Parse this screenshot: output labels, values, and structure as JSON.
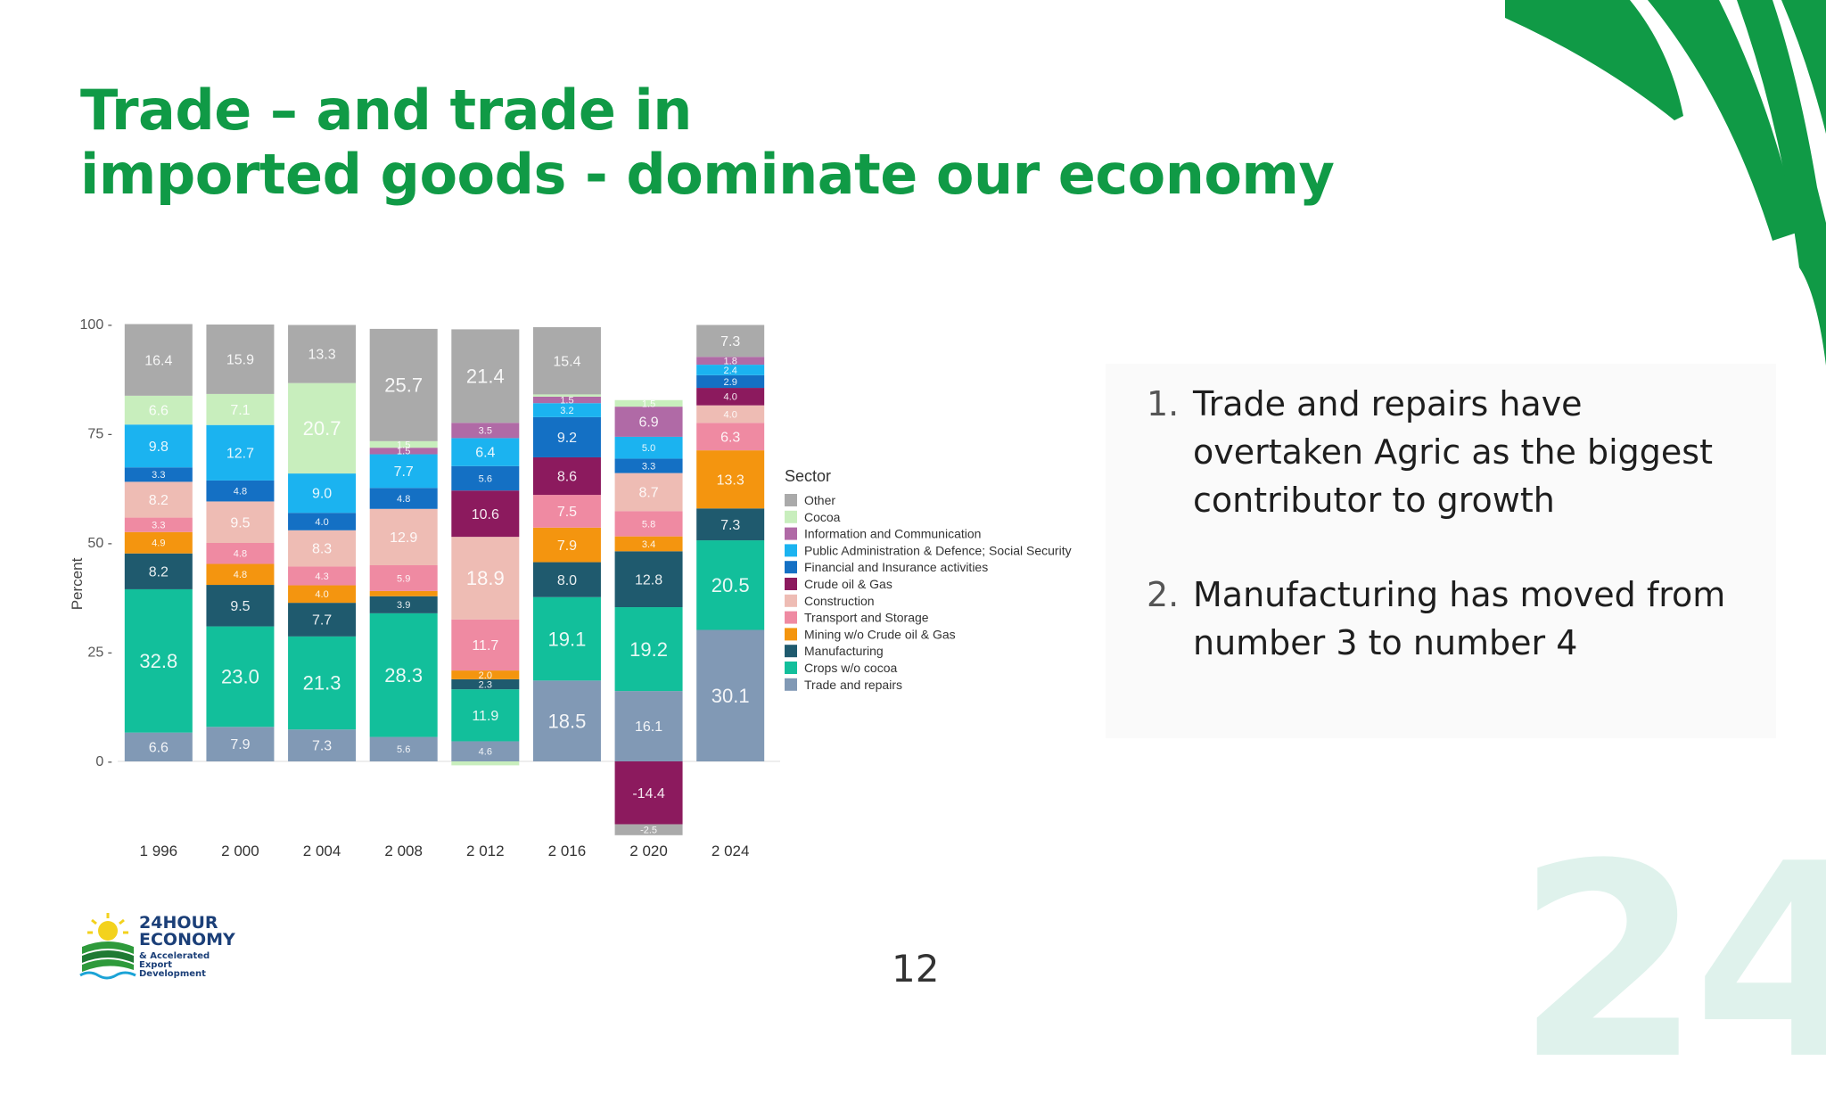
{
  "slide": {
    "title_line1": "Trade – and trade in",
    "title_line2": "imported goods - dominate our economy",
    "page_number": "12",
    "accent_color": "#109a46",
    "bg_number": "24"
  },
  "logo": {
    "line1": "24HOUR",
    "line2": "ECONOMY",
    "line3": "& Accelerated Export Development"
  },
  "points": [
    {
      "num": "1.",
      "text": "Trade and repairs have overtaken Agric as the biggest contributor to growth"
    },
    {
      "num": "2.",
      "text": "Manufacturing has moved from number 3 to number 4"
    }
  ],
  "chart_data": {
    "type": "bar",
    "stacked": true,
    "ylabel": "Percent",
    "yticks": [
      0,
      25,
      50,
      75,
      100
    ],
    "ylim": [
      -18,
      100
    ],
    "categories": [
      "1 996",
      "2 000",
      "2 004",
      "2 008",
      "2 012",
      "2 016",
      "2 020",
      "2 024"
    ],
    "legend_title": "Sector",
    "series": [
      {
        "name": "Trade and repairs",
        "color": "#8199b5",
        "values": [
          6.6,
          7.9,
          7.3,
          5.6,
          4.6,
          18.5,
          16.1,
          30.1
        ]
      },
      {
        "name": "Crops w/o cocoa",
        "color": "#12bf9b",
        "values": [
          32.8,
          23.0,
          21.3,
          28.3,
          11.9,
          19.1,
          19.2,
          20.5
        ]
      },
      {
        "name": "Manufacturing",
        "color": "#1f5a6e",
        "values": [
          8.2,
          9.5,
          7.7,
          3.9,
          2.3,
          8.0,
          12.8,
          7.3
        ]
      },
      {
        "name": "Mining w/o Crude oil & Gas",
        "color": "#f4950f",
        "values": [
          4.9,
          4.8,
          4.0,
          1.2,
          2.0,
          7.9,
          3.4,
          13.3
        ]
      },
      {
        "name": "Transport and Storage",
        "color": "#ef8aa2",
        "values": [
          3.3,
          4.8,
          4.3,
          5.9,
          11.7,
          7.5,
          5.8,
          6.3
        ]
      },
      {
        "name": "Construction",
        "color": "#eebcb4",
        "values": [
          8.2,
          9.5,
          8.3,
          12.9,
          18.9,
          0,
          8.7,
          4.0
        ]
      },
      {
        "name": "Crude oil & Gas",
        "color": "#8c1a5e",
        "values": [
          0,
          0,
          0,
          0,
          10.6,
          8.6,
          -14.4,
          4.0
        ]
      },
      {
        "name": "Financial and Insurance activities",
        "color": "#1470c4",
        "values": [
          3.3,
          4.8,
          4.0,
          4.8,
          5.6,
          9.2,
          3.3,
          2.9
        ]
      },
      {
        "name": "Public Administration & Defence; Social Security",
        "color": "#1bb3f0",
        "values": [
          9.8,
          12.7,
          9.0,
          7.7,
          6.4,
          3.2,
          5.0,
          2.4
        ]
      },
      {
        "name": "Information and Communication",
        "color": "#b06aa6",
        "values": [
          0,
          0,
          0,
          1.5,
          3.5,
          1.5,
          6.9,
          1.8
        ]
      },
      {
        "name": "Cocoa",
        "color": "#c8eebd",
        "values": [
          6.6,
          7.1,
          20.7,
          1.5,
          -0.9,
          0.5,
          1.5,
          0
        ]
      },
      {
        "name": "Other",
        "color": "#aaaaaa",
        "values": [
          16.4,
          15.9,
          13.3,
          25.7,
          21.4,
          15.4,
          -2.5,
          7.3
        ]
      }
    ]
  }
}
